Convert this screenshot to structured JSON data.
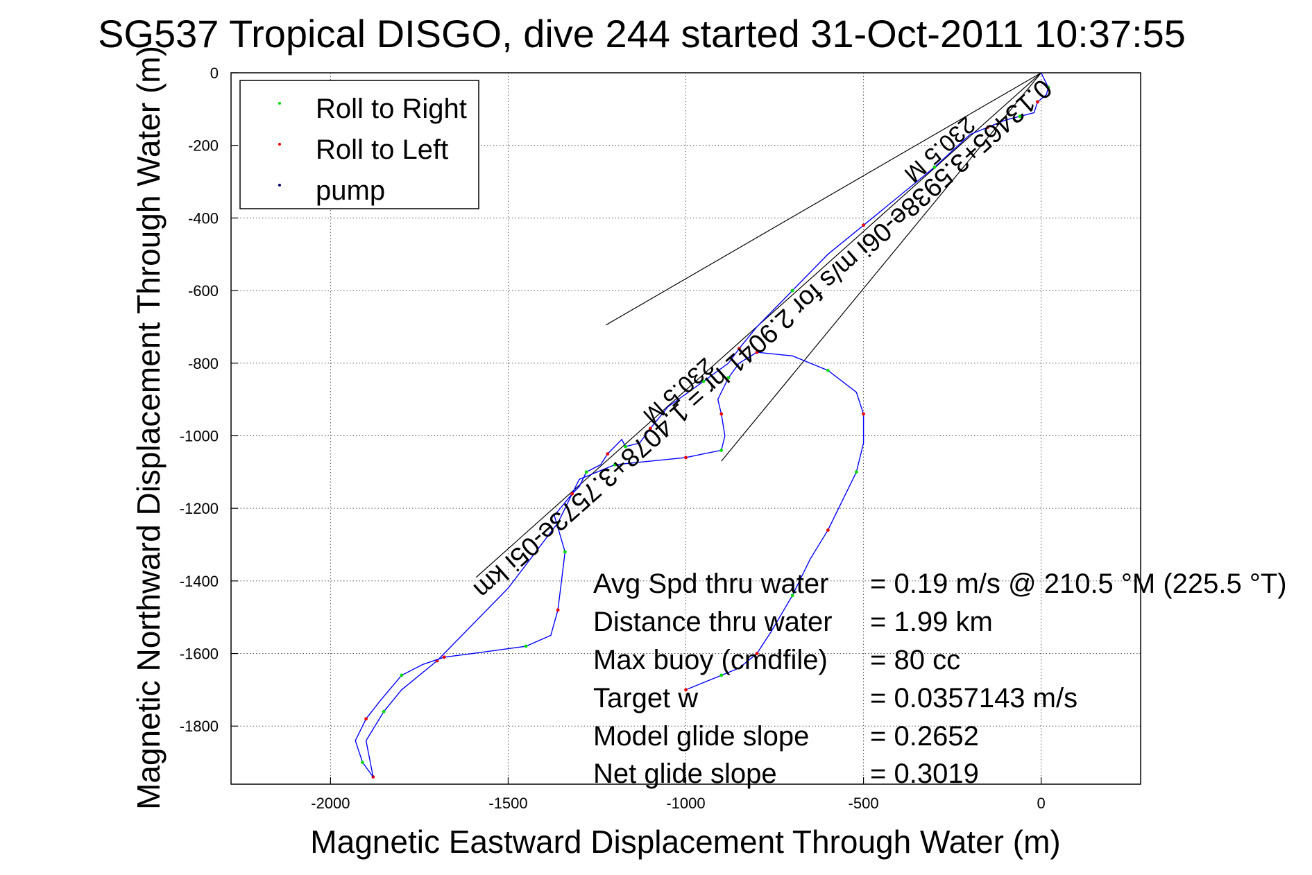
{
  "chart_data": {
    "type": "line",
    "title": "SG537 Tropical DISGO, dive 244 started 31-Oct-2011 10:37:55",
    "xlabel": "Magnetic Eastward Displacement Through Water (m)",
    "ylabel": "Magnetic Northward Displacement Through Water (m)",
    "xlim": [
      -2280,
      280
    ],
    "ylim": [
      -1960,
      0
    ],
    "x_ticks": [
      -2000,
      -1500,
      -1000,
      -500,
      0
    ],
    "x_tick_labels": [
      "-2000",
      "-1500",
      "-1000",
      "-500",
      "0"
    ],
    "y_ticks": [
      0,
      -200,
      -400,
      -600,
      -800,
      -1000,
      -1200,
      -1400,
      -1600,
      -1800
    ],
    "y_tick_labels": [
      "0",
      "-200",
      "-400",
      "-600",
      "-800",
      "-1000",
      "-1200",
      "-1400",
      "-1600",
      "-1800"
    ],
    "grid": true,
    "legend": {
      "placement": "top-left",
      "entries": [
        {
          "label": "Roll to Right",
          "color": "#00dd00"
        },
        {
          "label": "Roll to Left",
          "color": "#ee0000"
        },
        {
          "label": "pump",
          "color": "#000066"
        }
      ]
    },
    "series": [
      {
        "color": "#0000ff",
        "x": [
          0,
          20,
          15,
          -10,
          -20,
          -60,
          -100,
          -150,
          -200,
          -300,
          -400,
          -500,
          -600,
          -700,
          -800,
          -850,
          -880,
          -950,
          -1050,
          -1100,
          -1130,
          -1170,
          -1180,
          -1220,
          -1240,
          -1280,
          -1300,
          -1320,
          -1340,
          -1360,
          -1500,
          -1700,
          -1800,
          -1850,
          -1900,
          -1880
        ],
        "y": [
          0,
          -40,
          -60,
          -80,
          -110,
          -120,
          -130,
          -150,
          -170,
          -260,
          -340,
          -420,
          -500,
          -600,
          -700,
          -760,
          -800,
          -850,
          -920,
          -980,
          -1020,
          -1030,
          -1010,
          -1050,
          -1080,
          -1100,
          -1140,
          -1160,
          -1200,
          -1240,
          -1420,
          -1620,
          -1700,
          -1760,
          -1840,
          -1940
        ]
      },
      {
        "color": "#0000ff",
        "x": [
          -1880,
          -1910,
          -1930,
          -1900,
          -1860,
          -1800,
          -1740,
          -1680,
          -1600,
          -1450,
          -1380,
          -1360,
          -1350,
          -1340,
          -1370,
          -1320,
          -1300,
          -1200,
          -1100,
          -1000,
          -950,
          -900,
          -890,
          -900,
          -910,
          -880,
          -850,
          -800,
          -700,
          -600,
          -520,
          -500,
          -500,
          -520,
          -560,
          -600,
          -650,
          -700,
          -760,
          -800,
          -850,
          -900,
          -950,
          -1000
        ],
        "y": [
          -1940,
          -1900,
          -1840,
          -1780,
          -1730,
          -1660,
          -1630,
          -1610,
          -1600,
          -1580,
          -1550,
          -1480,
          -1400,
          -1320,
          -1220,
          -1160,
          -1120,
          -1080,
          -1070,
          -1060,
          -1050,
          -1040,
          -1000,
          -940,
          -900,
          -840,
          -800,
          -770,
          -780,
          -820,
          -880,
          -940,
          -1020,
          -1100,
          -1180,
          -1260,
          -1340,
          -1440,
          -1540,
          -1600,
          -1640,
          -1660,
          -1680,
          -1700
        ]
      }
    ],
    "annotations": {
      "main_line_label": "0.13465+3.5938e-06i m/s for 2.9041 hr = 1.4078+3.7573e-05i km",
      "cone_label_top": "230.5 M",
      "cone_label_mid": "230.5 M"
    },
    "stats": [
      {
        "label": "Avg Spd thru water",
        "value": "=  0.19 m/s @ 210.5 °M (225.5 °T)"
      },
      {
        "label": "Distance thru water",
        "value": "=  1.99 km"
      },
      {
        "label": "Max buoy (cmdfile)",
        "value": "= 80 cc"
      },
      {
        "label": "Target w",
        "value": "= 0.0357143 m/s"
      },
      {
        "label": "Model glide slope",
        "value": "= 0.2652"
      },
      {
        "label": "Net glide slope",
        "value": "= 0.3019"
      }
    ]
  }
}
